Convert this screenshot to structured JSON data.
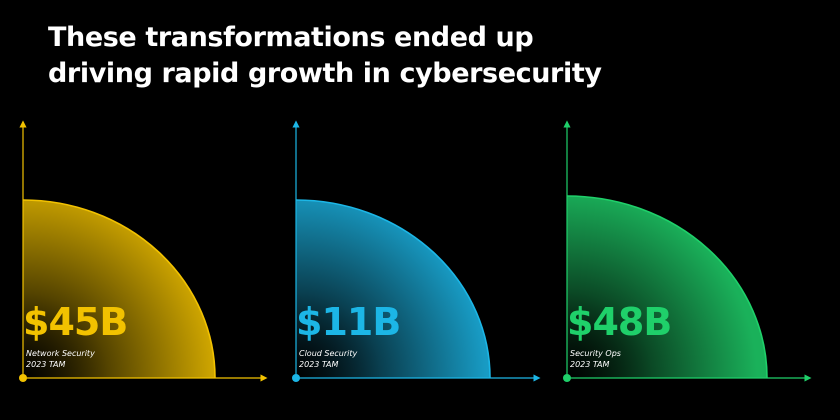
{
  "headline": {
    "line1": "These transformations ended up",
    "line2": "driving rapid growth in cybersecurity"
  },
  "markets": [
    {
      "amount": "$45B",
      "segment": "Network Security",
      "period": "2023 TAM",
      "value_billions": 45,
      "color": "#f2c200"
    },
    {
      "amount": "$11B",
      "segment": "Cloud Security",
      "period": "2023 TAM",
      "value_billions": 11,
      "color": "#1cb6e6"
    },
    {
      "amount": "$48B",
      "segment": "Security Ops",
      "period": "2023 TAM",
      "value_billions": 48,
      "color": "#1fd06a"
    }
  ]
}
